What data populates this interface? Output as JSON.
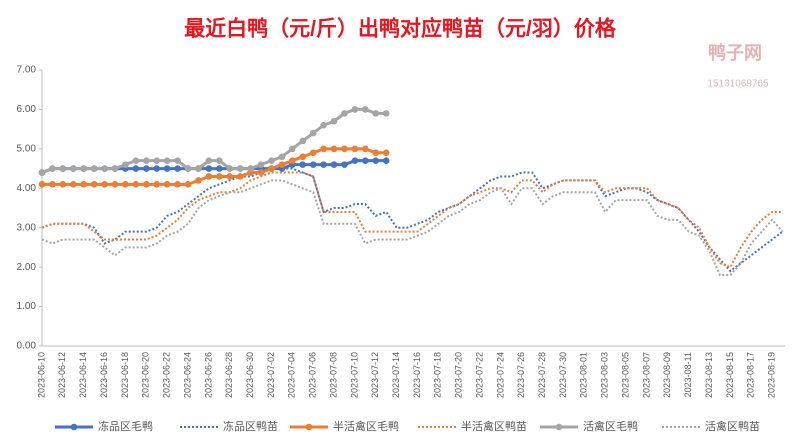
{
  "chart_data": {
    "type": "line",
    "title": "最近白鸭（元/斤）出鸭对应鸭苗（元/羽）价格",
    "watermark": {
      "brand": "鸭子网",
      "phone": "15131069765"
    },
    "categories": [
      "2023-06-10",
      null,
      "2023-06-12",
      null,
      "2023-06-14",
      null,
      "2023-06-16",
      null,
      "2023-06-18",
      null,
      "2023-06-20",
      null,
      "2023-06-22",
      null,
      "2023-06-24",
      null,
      "2023-06-26",
      null,
      "2023-06-28",
      null,
      "2023-06-30",
      null,
      "2023-07-02",
      null,
      "2023-07-04",
      null,
      "2023-07-06",
      null,
      "2023-07-08",
      null,
      "2023-07-10",
      null,
      "2023-07-12",
      null,
      "2023-07-14",
      null,
      "2023-07-16",
      null,
      "2023-07-18",
      null,
      "2023-07-20",
      null,
      "2023-07-22",
      null,
      "2023-07-24",
      null,
      "2023-07-26",
      null,
      "2023-07-28",
      null,
      "2023-07-30",
      null,
      "2023-08-01",
      null,
      "2023-08-03",
      null,
      "2023-08-05",
      null,
      "2023-08-07",
      null,
      "2023-08-09",
      null,
      "2023-08-11",
      null,
      "2023-08-13",
      null,
      "2023-08-15",
      null,
      "2023-08-17",
      null,
      "2023-08-19",
      null
    ],
    "series": [
      {
        "name": "冻品区毛鸭",
        "color": "#4472c4",
        "dashed": false,
        "markers": true,
        "values": [
          4.4,
          4.5,
          4.5,
          4.5,
          4.5,
          4.5,
          4.5,
          4.5,
          4.5,
          4.5,
          4.5,
          4.5,
          4.5,
          4.5,
          4.5,
          4.5,
          4.5,
          4.5,
          4.5,
          4.5,
          4.5,
          4.5,
          4.5,
          4.5,
          4.6,
          4.6,
          4.6,
          4.6,
          4.6,
          4.6,
          4.7,
          4.7,
          4.7,
          4.7,
          null,
          null,
          null,
          null,
          null,
          null,
          null,
          null,
          null,
          null,
          null,
          null,
          null,
          null,
          null,
          null,
          null,
          null,
          null,
          null,
          null,
          null,
          null,
          null,
          null,
          null,
          null,
          null,
          null,
          null,
          null,
          null,
          null,
          null,
          null,
          null,
          null,
          null
        ]
      },
      {
        "name": "冻品区鸭苗",
        "color": "#4472c4",
        "dashed": true,
        "markers": false,
        "values": [
          3.0,
          3.1,
          3.1,
          3.1,
          3.1,
          3.0,
          2.6,
          2.7,
          2.9,
          2.9,
          2.9,
          3.0,
          3.3,
          3.4,
          3.6,
          3.8,
          4.0,
          4.1,
          4.2,
          4.3,
          4.3,
          4.4,
          4.5,
          4.5,
          4.5,
          4.4,
          4.3,
          3.4,
          3.5,
          3.5,
          3.6,
          3.6,
          3.3,
          3.4,
          3.0,
          3.0,
          3.1,
          3.2,
          3.4,
          3.5,
          3.6,
          3.8,
          4.0,
          4.2,
          4.3,
          4.3,
          4.4,
          4.4,
          4.0,
          4.1,
          4.2,
          4.2,
          4.2,
          4.2,
          3.8,
          3.9,
          4.0,
          4.0,
          3.9,
          3.7,
          3.6,
          3.5,
          3.2,
          2.9,
          2.5,
          2.2,
          1.9,
          2.1,
          2.3,
          2.5,
          2.7,
          2.9
        ]
      },
      {
        "name": "半活禽区毛鸭",
        "color": "#ed7d31",
        "dashed": false,
        "markers": true,
        "values": [
          4.1,
          4.1,
          4.1,
          4.1,
          4.1,
          4.1,
          4.1,
          4.1,
          4.1,
          4.1,
          4.1,
          4.1,
          4.1,
          4.1,
          4.1,
          4.2,
          4.3,
          4.3,
          4.3,
          4.3,
          4.4,
          4.4,
          4.5,
          4.6,
          4.7,
          4.8,
          4.9,
          5.0,
          5.0,
          5.0,
          5.0,
          5.0,
          4.9,
          4.9,
          null,
          null,
          null,
          null,
          null,
          null,
          null,
          null,
          null,
          null,
          null,
          null,
          null,
          null,
          null,
          null,
          null,
          null,
          null,
          null,
          null,
          null,
          null,
          null,
          null,
          null,
          null,
          null,
          null,
          null,
          null,
          null,
          null,
          null,
          null,
          null,
          null,
          null
        ]
      },
      {
        "name": "半活禽区鸭苗",
        "color": "#ed7d31",
        "dashed": true,
        "markers": false,
        "values": [
          3.0,
          3.1,
          3.1,
          3.1,
          3.1,
          2.9,
          2.7,
          2.7,
          2.7,
          2.7,
          2.7,
          2.8,
          3.0,
          3.2,
          3.5,
          3.7,
          3.8,
          3.9,
          3.9,
          4.0,
          4.2,
          4.3,
          4.4,
          4.4,
          4.4,
          4.4,
          4.3,
          3.4,
          3.4,
          3.4,
          3.4,
          2.9,
          2.9,
          2.9,
          2.9,
          2.9,
          2.9,
          3.1,
          3.3,
          3.5,
          3.6,
          3.8,
          3.9,
          4.0,
          4.0,
          3.9,
          4.2,
          4.2,
          3.9,
          4.1,
          4.2,
          4.2,
          4.2,
          4.2,
          3.9,
          4.0,
          4.0,
          4.0,
          4.0,
          3.7,
          3.6,
          3.5,
          3.2,
          3.0,
          2.5,
          2.1,
          2.0,
          2.5,
          2.9,
          3.2,
          3.4,
          3.4
        ]
      },
      {
        "name": "活禽区毛鸭",
        "color": "#a5a5a5",
        "dashed": false,
        "markers": true,
        "values": [
          4.4,
          4.5,
          4.5,
          4.5,
          4.5,
          4.5,
          4.5,
          4.5,
          4.6,
          4.7,
          4.7,
          4.7,
          4.7,
          4.7,
          4.5,
          4.5,
          4.7,
          4.7,
          4.5,
          4.5,
          4.5,
          4.6,
          4.7,
          4.8,
          5.0,
          5.2,
          5.4,
          5.6,
          5.7,
          5.9,
          6.0,
          6.0,
          5.9,
          5.9,
          null,
          null,
          null,
          null,
          null,
          null,
          null,
          null,
          null,
          null,
          null,
          null,
          null,
          null,
          null,
          null,
          null,
          null,
          null,
          null,
          null,
          null,
          null,
          null,
          null,
          null,
          null,
          null,
          null,
          null,
          null,
          null,
          null,
          null,
          null,
          null,
          null,
          null
        ]
      },
      {
        "name": "活禽区鸭苗",
        "color": "#a5a5a5",
        "dashed": true,
        "markers": false,
        "values": [
          2.7,
          2.6,
          2.7,
          2.7,
          2.7,
          2.7,
          2.5,
          2.3,
          2.5,
          2.5,
          2.5,
          2.6,
          2.8,
          2.9,
          3.1,
          3.5,
          3.7,
          3.8,
          3.9,
          3.9,
          4.0,
          4.1,
          4.2,
          4.2,
          4.1,
          4.0,
          3.9,
          3.1,
          3.1,
          3.1,
          3.1,
          2.6,
          2.7,
          2.7,
          2.7,
          2.7,
          2.8,
          2.9,
          3.1,
          3.3,
          3.4,
          3.6,
          3.7,
          3.9,
          4.0,
          3.6,
          4.0,
          4.0,
          3.6,
          3.8,
          3.9,
          3.9,
          3.9,
          3.9,
          3.4,
          3.7,
          3.7,
          3.7,
          3.7,
          3.3,
          3.2,
          3.2,
          2.9,
          2.8,
          2.4,
          1.8,
          1.8,
          2.1,
          2.6,
          2.9,
          3.2,
          2.9
        ]
      }
    ],
    "ylim": [
      0,
      7
    ],
    "yticks": [
      {
        "value": 0,
        "label": "0.00"
      },
      {
        "value": 1,
        "label": "1.00"
      },
      {
        "value": 2,
        "label": "2.00"
      },
      {
        "value": 3,
        "label": "3.00"
      },
      {
        "value": 4,
        "label": "4.00"
      },
      {
        "value": 5,
        "label": "5.00"
      },
      {
        "value": 6,
        "label": "6.00"
      },
      {
        "value": 7,
        "label": "7.00"
      }
    ],
    "grid": false,
    "legend": "bottom"
  }
}
